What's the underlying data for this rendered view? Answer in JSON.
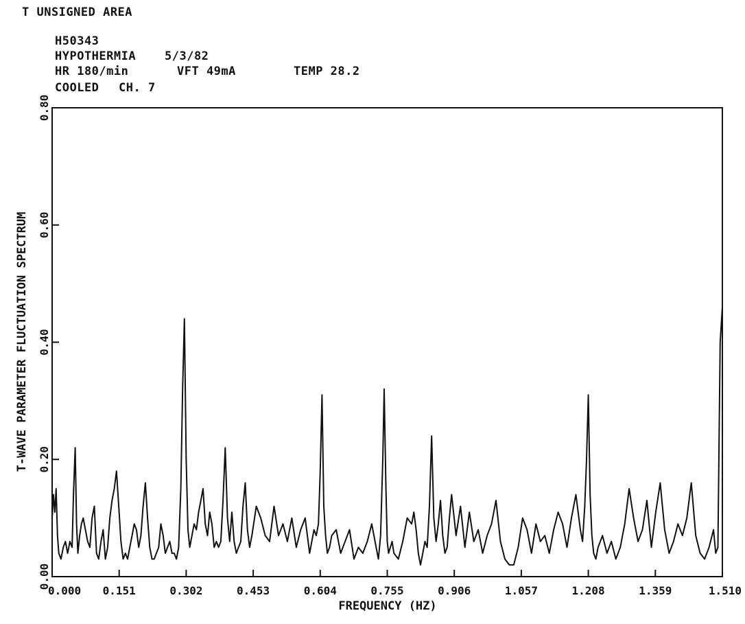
{
  "header": {
    "title": "T UNSIGNED AREA",
    "record_id": "H50343",
    "condition": "HYPOTHERMIA",
    "date": "5/3/82",
    "hr": "HR 180/min",
    "vft": "VFT 49mA",
    "temp": "TEMP 28.2",
    "state": "COOLED",
    "channel": "CH. 7"
  },
  "chart_data": {
    "type": "line",
    "title": "T UNSIGNED AREA",
    "xlabel": "FREQUENCY (HZ)",
    "ylabel": "T-WAVE PARAMETER FLUCTUATION SPECTRUM",
    "xlim": [
      0.0,
      1.51
    ],
    "ylim": [
      0.0,
      0.8
    ],
    "x_ticks": [
      "0.000",
      "0.151",
      "0.302",
      "0.453",
      "0.604",
      "0.755",
      "0.906",
      "1.057",
      "1.208",
      "1.359",
      "1.510"
    ],
    "y_ticks": [
      "0.00",
      "0.20",
      "0.40",
      "0.60",
      "0.80"
    ],
    "x_tick_values": [
      0.0,
      0.151,
      0.302,
      0.453,
      0.604,
      0.755,
      0.906,
      1.057,
      1.208,
      1.359,
      1.51
    ],
    "y_tick_values": [
      0.0,
      0.2,
      0.4,
      0.6,
      0.8
    ],
    "grid": false,
    "series": [
      {
        "color": "#111111",
        "x": [
          0.0,
          0.003,
          0.006,
          0.009,
          0.012,
          0.015,
          0.02,
          0.025,
          0.03,
          0.035,
          0.04,
          0.045,
          0.048,
          0.052,
          0.055,
          0.058,
          0.062,
          0.066,
          0.07,
          0.075,
          0.08,
          0.085,
          0.09,
          0.095,
          0.1,
          0.105,
          0.11,
          0.115,
          0.12,
          0.125,
          0.13,
          0.135,
          0.14,
          0.145,
          0.15,
          0.155,
          0.16,
          0.165,
          0.17,
          0.175,
          0.18,
          0.185,
          0.19,
          0.195,
          0.2,
          0.205,
          0.21,
          0.215,
          0.22,
          0.225,
          0.23,
          0.235,
          0.24,
          0.245,
          0.25,
          0.255,
          0.26,
          0.265,
          0.27,
          0.275,
          0.28,
          0.285,
          0.29,
          0.294,
          0.298,
          0.302,
          0.306,
          0.31,
          0.315,
          0.32,
          0.325,
          0.33,
          0.335,
          0.34,
          0.345,
          0.35,
          0.355,
          0.36,
          0.365,
          0.37,
          0.375,
          0.38,
          0.385,
          0.39,
          0.395,
          0.4,
          0.405,
          0.41,
          0.415,
          0.42,
          0.425,
          0.43,
          0.435,
          0.44,
          0.445,
          0.45,
          0.46,
          0.47,
          0.48,
          0.49,
          0.5,
          0.51,
          0.52,
          0.53,
          0.54,
          0.55,
          0.56,
          0.57,
          0.58,
          0.59,
          0.595,
          0.6,
          0.604,
          0.608,
          0.612,
          0.616,
          0.62,
          0.625,
          0.63,
          0.64,
          0.65,
          0.66,
          0.67,
          0.68,
          0.69,
          0.7,
          0.71,
          0.72,
          0.73,
          0.735,
          0.74,
          0.745,
          0.748,
          0.752,
          0.755,
          0.758,
          0.762,
          0.766,
          0.77,
          0.78,
          0.79,
          0.8,
          0.81,
          0.815,
          0.82,
          0.825,
          0.83,
          0.835,
          0.84,
          0.845,
          0.85,
          0.855,
          0.86,
          0.865,
          0.87,
          0.875,
          0.88,
          0.885,
          0.89,
          0.895,
          0.9,
          0.91,
          0.92,
          0.93,
          0.94,
          0.95,
          0.96,
          0.97,
          0.98,
          0.99,
          1.0,
          1.01,
          1.02,
          1.03,
          1.04,
          1.05,
          1.06,
          1.07,
          1.08,
          1.09,
          1.1,
          1.11,
          1.12,
          1.13,
          1.14,
          1.15,
          1.16,
          1.17,
          1.18,
          1.19,
          1.195,
          1.2,
          1.204,
          1.208,
          1.212,
          1.216,
          1.22,
          1.225,
          1.23,
          1.24,
          1.25,
          1.26,
          1.27,
          1.28,
          1.29,
          1.3,
          1.31,
          1.32,
          1.33,
          1.34,
          1.35,
          1.36,
          1.37,
          1.38,
          1.39,
          1.4,
          1.41,
          1.42,
          1.43,
          1.44,
          1.45,
          1.46,
          1.47,
          1.48,
          1.49,
          1.495,
          1.5,
          1.505,
          1.51
        ],
        "y": [
          0.1,
          0.14,
          0.11,
          0.15,
          0.07,
          0.04,
          0.03,
          0.05,
          0.06,
          0.04,
          0.06,
          0.05,
          0.14,
          0.22,
          0.09,
          0.04,
          0.07,
          0.09,
          0.1,
          0.08,
          0.06,
          0.05,
          0.1,
          0.12,
          0.04,
          0.03,
          0.06,
          0.08,
          0.03,
          0.05,
          0.1,
          0.13,
          0.15,
          0.18,
          0.12,
          0.06,
          0.03,
          0.04,
          0.03,
          0.05,
          0.07,
          0.09,
          0.08,
          0.05,
          0.07,
          0.12,
          0.16,
          0.1,
          0.05,
          0.03,
          0.03,
          0.04,
          0.05,
          0.09,
          0.07,
          0.04,
          0.05,
          0.06,
          0.04,
          0.04,
          0.03,
          0.05,
          0.15,
          0.32,
          0.44,
          0.2,
          0.08,
          0.05,
          0.07,
          0.09,
          0.08,
          0.11,
          0.13,
          0.15,
          0.09,
          0.07,
          0.11,
          0.09,
          0.05,
          0.06,
          0.05,
          0.06,
          0.13,
          0.22,
          0.1,
          0.06,
          0.11,
          0.06,
          0.04,
          0.05,
          0.06,
          0.12,
          0.16,
          0.08,
          0.05,
          0.07,
          0.12,
          0.1,
          0.07,
          0.06,
          0.12,
          0.07,
          0.09,
          0.06,
          0.1,
          0.05,
          0.08,
          0.1,
          0.04,
          0.08,
          0.07,
          0.09,
          0.18,
          0.31,
          0.12,
          0.07,
          0.04,
          0.05,
          0.07,
          0.08,
          0.04,
          0.06,
          0.08,
          0.03,
          0.05,
          0.04,
          0.06,
          0.09,
          0.05,
          0.03,
          0.07,
          0.2,
          0.32,
          0.15,
          0.06,
          0.04,
          0.05,
          0.06,
          0.04,
          0.03,
          0.06,
          0.1,
          0.09,
          0.11,
          0.08,
          0.04,
          0.02,
          0.04,
          0.06,
          0.05,
          0.12,
          0.24,
          0.1,
          0.06,
          0.09,
          0.13,
          0.07,
          0.04,
          0.05,
          0.1,
          0.14,
          0.07,
          0.12,
          0.05,
          0.11,
          0.06,
          0.08,
          0.04,
          0.07,
          0.09,
          0.13,
          0.06,
          0.03,
          0.02,
          0.02,
          0.05,
          0.1,
          0.08,
          0.04,
          0.09,
          0.06,
          0.07,
          0.04,
          0.08,
          0.11,
          0.09,
          0.05,
          0.1,
          0.14,
          0.08,
          0.06,
          0.12,
          0.2,
          0.31,
          0.14,
          0.07,
          0.04,
          0.03,
          0.05,
          0.07,
          0.04,
          0.06,
          0.03,
          0.05,
          0.09,
          0.15,
          0.1,
          0.06,
          0.08,
          0.13,
          0.05,
          0.11,
          0.16,
          0.08,
          0.04,
          0.06,
          0.09,
          0.07,
          0.1,
          0.16,
          0.07,
          0.04,
          0.03,
          0.05,
          0.08,
          0.04,
          0.05,
          0.4,
          0.46
        ]
      }
    ]
  }
}
